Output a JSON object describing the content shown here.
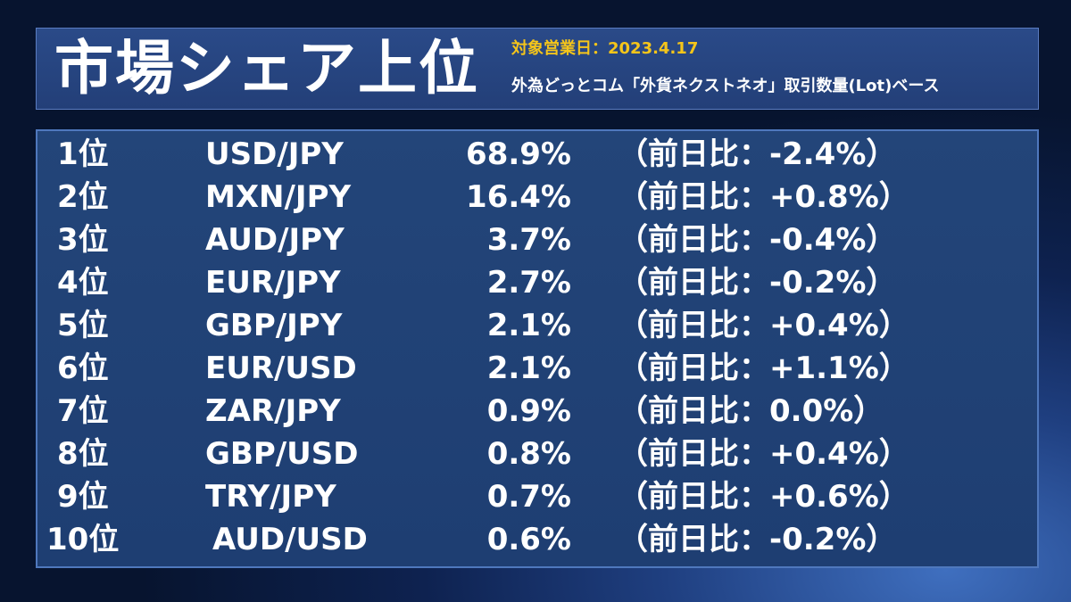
{
  "header": {
    "title": "市場シェア上位",
    "date_line": "対象営業日：2023.4.17",
    "basis_line": "外為どっとコム「外貨ネクストネオ」取引数量(Lot)ベース"
  },
  "rankings": [
    {
      "rank": "1位",
      "pair": "USD/JPY",
      "share": "68.9%",
      "change": "（前日比：-2.4%）"
    },
    {
      "rank": "2位",
      "pair": "MXN/JPY",
      "share": "16.4%",
      "change": "（前日比：+0.8%）"
    },
    {
      "rank": "3位",
      "pair": "AUD/JPY",
      "share": "3.7%",
      "change": "（前日比：-0.4%）"
    },
    {
      "rank": "4位",
      "pair": "EUR/JPY",
      "share": "2.7%",
      "change": "（前日比：-0.2%）"
    },
    {
      "rank": "5位",
      "pair": "GBP/JPY",
      "share": "2.1%",
      "change": "（前日比：+0.4%）"
    },
    {
      "rank": "6位",
      "pair": "EUR/USD",
      "share": "2.1%",
      "change": "（前日比：+1.1%）"
    },
    {
      "rank": "7位",
      "pair": "ZAR/JPY",
      "share": "0.9%",
      "change": "（前日比：0.0%）"
    },
    {
      "rank": "8位",
      "pair": "GBP/USD",
      "share": "0.8%",
      "change": "（前日比：+0.4%）"
    },
    {
      "rank": "9位",
      "pair": "TRY/JPY",
      "share": "0.7%",
      "change": "（前日比：+0.6%）"
    },
    {
      "rank": "10位",
      "pair": "AUD/USD",
      "share": "0.6%",
      "change": "（前日比：-0.2%）"
    }
  ],
  "colors": {
    "background": "#0e2250",
    "panel": "#234579",
    "panel_border": "#4f78bd",
    "date_accent": "#f5c51a",
    "text": "#ffffff"
  }
}
